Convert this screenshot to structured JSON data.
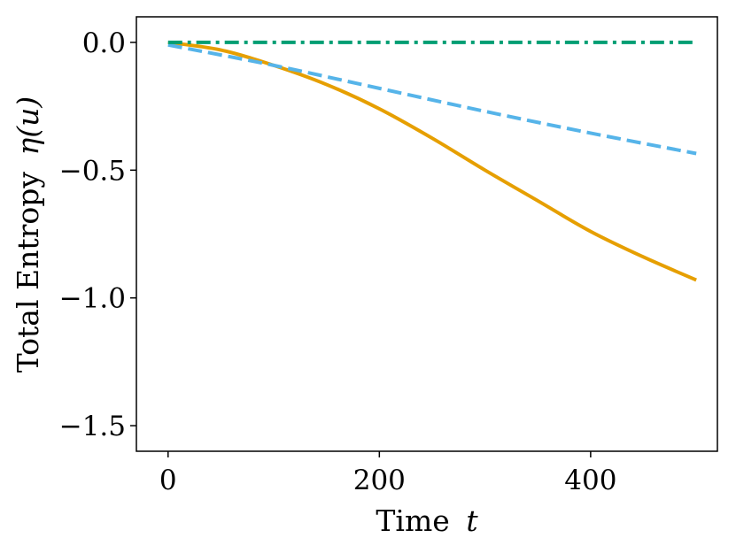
{
  "chart_data": {
    "type": "line",
    "title": "",
    "xlabel": "Time",
    "xlabel_var": "t",
    "ylabel": "Total Entropy",
    "ylabel_var": "η(u)",
    "xlim": [
      -30,
      520
    ],
    "ylim": [
      -1.6,
      0.1
    ],
    "xticks": [
      0,
      200,
      400
    ],
    "xtick_labels": [
      "0",
      "200",
      "400"
    ],
    "yticks": [
      0.0,
      -0.5,
      -1.0,
      -1.5
    ],
    "ytick_labels": [
      "0.0",
      "−0.5",
      "−1.0",
      "−1.5"
    ],
    "grid": false,
    "series": [
      {
        "color": "#E69F00",
        "style": "solid",
        "x": [
          0,
          50,
          100,
          150,
          200,
          250,
          300,
          350,
          400,
          450,
          500
        ],
        "y": [
          0.0,
          -0.03,
          -0.09,
          -0.165,
          -0.26,
          -0.375,
          -0.5,
          -0.62,
          -0.74,
          -0.84,
          -0.93
        ]
      },
      {
        "color": "#56B4E9",
        "style": "dashed",
        "x": [
          0,
          100,
          200,
          300,
          400,
          500
        ],
        "y": [
          -0.01,
          -0.09,
          -0.18,
          -0.27,
          -0.355,
          -0.435
        ]
      },
      {
        "color": "#009E73",
        "style": "dashdot",
        "x": [
          0,
          500
        ],
        "y": [
          0.0,
          0.0
        ]
      }
    ]
  }
}
